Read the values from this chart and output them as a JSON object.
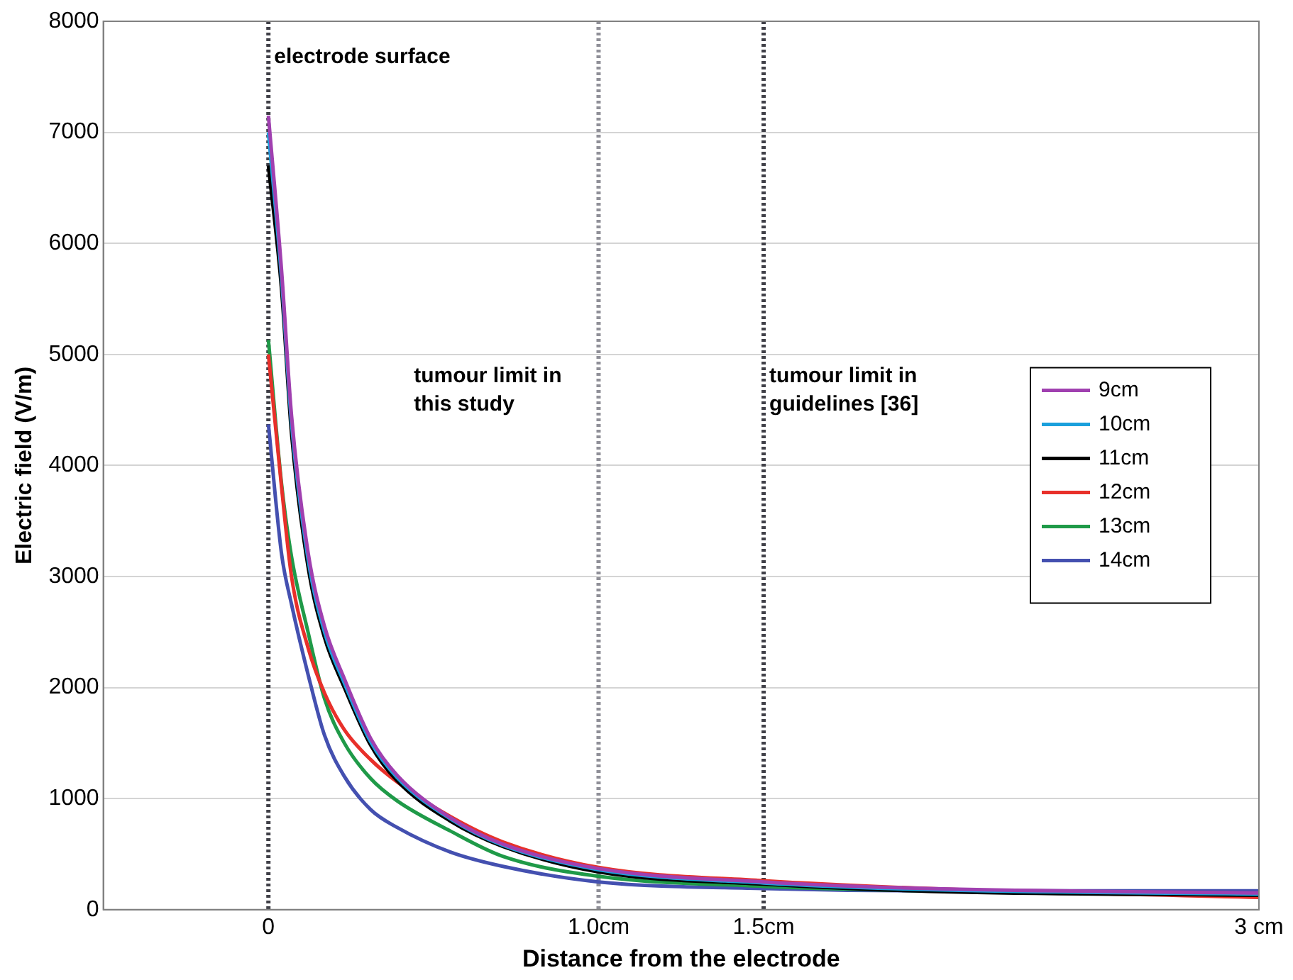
{
  "chart_data": {
    "type": "line",
    "xlabel": "Distance from the electrode",
    "ylabel": "Electric field (V/m)",
    "xlim": [
      -0.5,
      3
    ],
    "xticks": [
      0,
      {
        "value": 1,
        "label": "1.0cm"
      },
      {
        "value": 1.5,
        "label": "1.5cm"
      },
      {
        "value": 3,
        "label": "3 cm"
      }
    ],
    "ylim": [
      0,
      8000
    ],
    "yticks": [
      0,
      1000,
      2000,
      3000,
      4000,
      5000,
      6000,
      7000,
      8000
    ],
    "grid": "y",
    "legend": "right",
    "marker": "none",
    "line_style": "solid",
    "x": [
      0,
      0.04,
      0.07,
      0.12,
      0.17,
      0.23,
      0.31,
      0.39,
      0.55,
      0.71,
      1,
      1.5,
      2,
      3
    ],
    "series": [
      {
        "name": "9cm",
        "color": "#a040b0",
        "values": [
          7150,
          5750,
          4450,
          3220,
          2550,
          2080,
          1540,
          1210,
          830,
          590,
          370,
          250,
          190,
          150
        ]
      },
      {
        "name": "10cm",
        "color": "#1aa0dc",
        "values": [
          7000,
          5680,
          4380,
          3160,
          2500,
          2040,
          1510,
          1190,
          820,
          580,
          360,
          240,
          180,
          140
        ]
      },
      {
        "name": "11cm",
        "color": "#000000",
        "values": [
          6700,
          5580,
          4290,
          3090,
          2450,
          2000,
          1480,
          1160,
          800,
          570,
          340,
          230,
          165,
          130
        ]
      },
      {
        "name": "12cm",
        "color": "#e8302a",
        "values": [
          5000,
          3800,
          3000,
          2360,
          1950,
          1620,
          1350,
          1150,
          840,
          610,
          380,
          260,
          190,
          110
        ]
      },
      {
        "name": "13cm",
        "color": "#1f9a48",
        "values": [
          5130,
          3830,
          3180,
          2500,
          1900,
          1500,
          1180,
          980,
          710,
          480,
          300,
          210,
          170,
          140
        ]
      },
      {
        "name": "14cm",
        "color": "#4450b0",
        "values": [
          4370,
          3200,
          2750,
          2120,
          1570,
          1200,
          900,
          740,
          520,
          390,
          250,
          190,
          170,
          170
        ]
      }
    ],
    "ref_lines": [
      {
        "axis": "x",
        "value": 0,
        "label": "electrode surface",
        "color": "#404048",
        "line_style": "dotted"
      },
      {
        "axis": "x",
        "value": 1,
        "label": "tumour limit in this study",
        "color": "#909098",
        "line_style": "dotted"
      },
      {
        "axis": "x",
        "value": 1.5,
        "label": "tumour limit in guidelines [36]",
        "color": "#404048",
        "line_style": "dotted"
      }
    ]
  }
}
